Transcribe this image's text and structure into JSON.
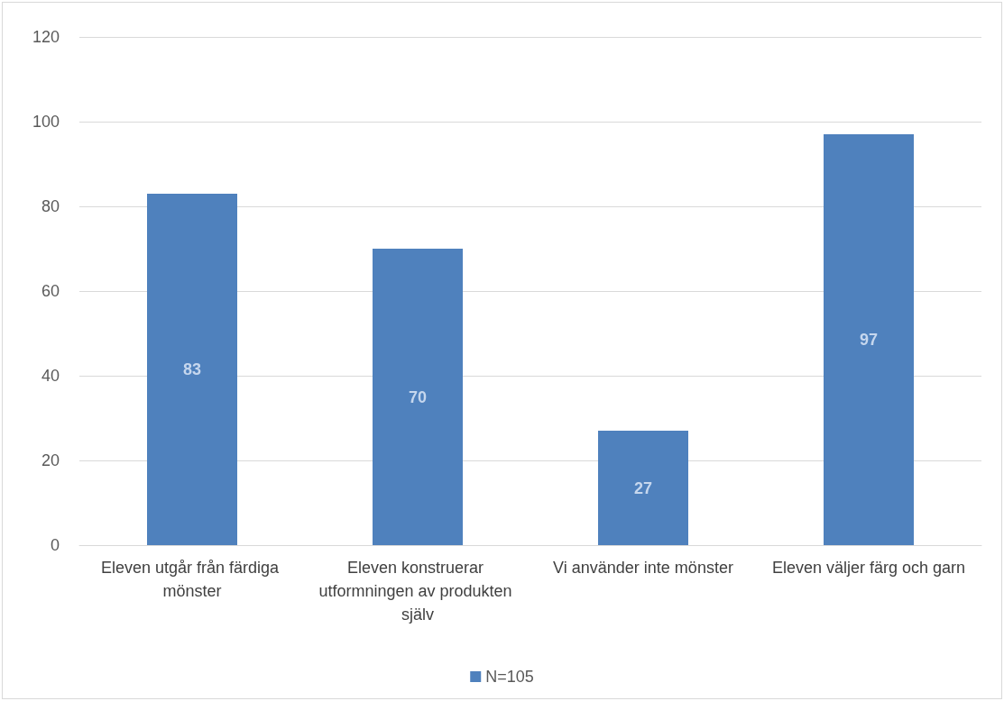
{
  "chart_data": {
    "type": "bar",
    "categories": [
      "Eleven utgår från färdiga mönster",
      "Eleven konstruerar utformningen av produkten själv",
      "Vi använder inte mönster",
      "Eleven väljer färg och garn"
    ],
    "series": [
      {
        "name": "N=105",
        "color": "#4f81bd",
        "values": [
          83,
          70,
          27,
          97
        ]
      }
    ],
    "ylim": [
      0,
      120
    ],
    "yticks": [
      0,
      20,
      40,
      60,
      80,
      100,
      120
    ],
    "grid": "y",
    "legend": "bottom",
    "data_labels": true
  }
}
